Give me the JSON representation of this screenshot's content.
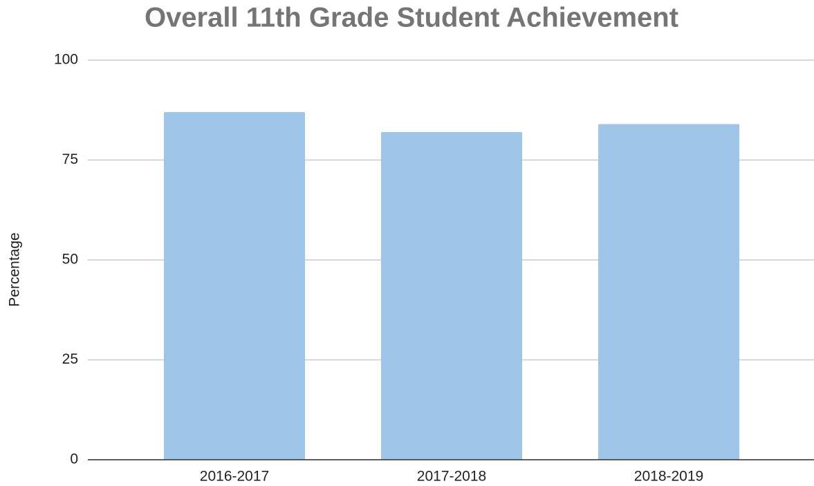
{
  "chart_data": {
    "type": "bar",
    "title": "Overall 11th Grade Student Achievement",
    "y_label": "Percentage",
    "categories": [
      "2016-2017",
      "2017-2018",
      "2018-2019"
    ],
    "values": [
      87,
      82,
      84
    ],
    "color": "#9fc5e8",
    "ylim": [
      0,
      100
    ],
    "yticks": [
      0,
      25,
      50,
      75,
      100
    ],
    "grid": true
  }
}
